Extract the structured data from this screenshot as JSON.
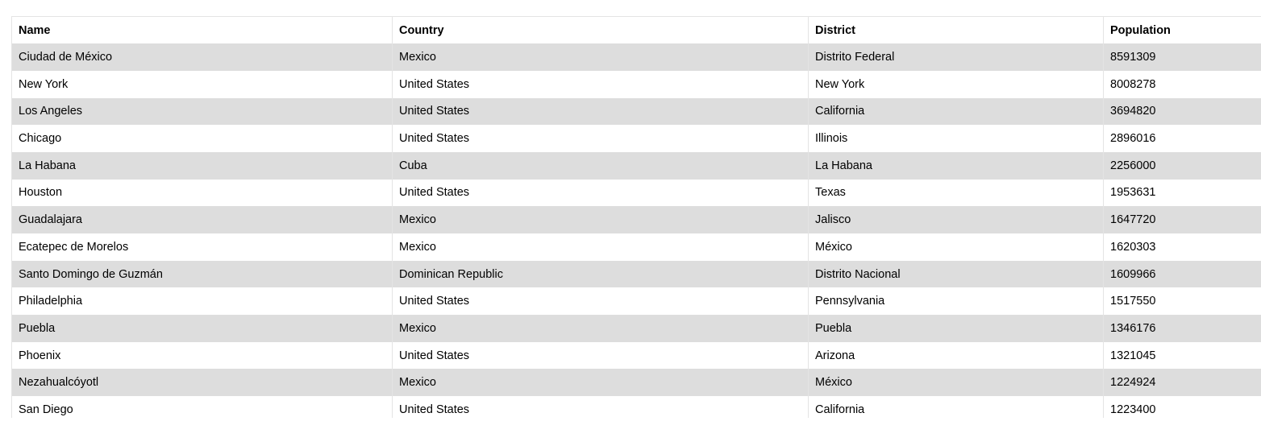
{
  "table": {
    "columns": [
      "Name",
      "Country",
      "District",
      "Population"
    ],
    "rows": [
      [
        "Ciudad de México",
        "Mexico",
        "Distrito Federal",
        "8591309"
      ],
      [
        "New York",
        "United States",
        "New York",
        "8008278"
      ],
      [
        "Los Angeles",
        "United States",
        "California",
        "3694820"
      ],
      [
        "Chicago",
        "United States",
        "Illinois",
        "2896016"
      ],
      [
        "La Habana",
        "Cuba",
        "La Habana",
        "2256000"
      ],
      [
        "Houston",
        "United States",
        "Texas",
        "1953631"
      ],
      [
        "Guadalajara",
        "Mexico",
        "Jalisco",
        "1647720"
      ],
      [
        "Ecatepec de Morelos",
        "Mexico",
        "México",
        "1620303"
      ],
      [
        "Santo Domingo de Guzmán",
        "Dominican Republic",
        "Distrito Nacional",
        "1609966"
      ],
      [
        "Philadelphia",
        "United States",
        "Pennsylvania",
        "1517550"
      ],
      [
        "Puebla",
        "Mexico",
        "Puebla",
        "1346176"
      ],
      [
        "Phoenix",
        "United States",
        "Arizona",
        "1321045"
      ],
      [
        "Nezahualcóyotl",
        "Mexico",
        "México",
        "1224924"
      ],
      [
        "San Diego",
        "United States",
        "California",
        "1223400"
      ]
    ]
  },
  "colors": {
    "striped_row": "#dddddd",
    "plain_row": "#ffffff",
    "border": "#e4e4e4"
  }
}
